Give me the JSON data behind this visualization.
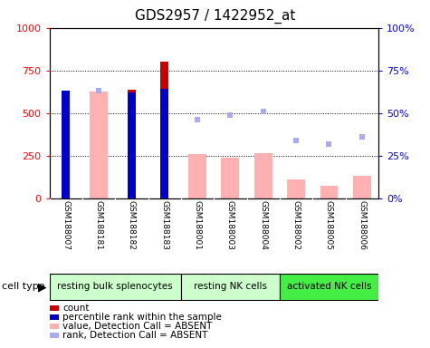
{
  "title": "GDS2957 / 1422952_at",
  "samples": [
    "GSM188007",
    "GSM188181",
    "GSM188182",
    "GSM188183",
    "GSM188001",
    "GSM188003",
    "GSM188004",
    "GSM188002",
    "GSM188005",
    "GSM188006"
  ],
  "count_values": [
    610,
    null,
    635,
    800,
    null,
    null,
    null,
    null,
    null,
    null
  ],
  "rank_values": [
    63,
    null,
    62,
    64,
    null,
    null,
    null,
    null,
    null,
    null
  ],
  "absent_value_bars": [
    null,
    625,
    null,
    null,
    260,
    240,
    265,
    110,
    75,
    130
  ],
  "absent_rank_dots": [
    null,
    63,
    null,
    null,
    46,
    49,
    51,
    34,
    32,
    36
  ],
  "ylim_left": [
    0,
    1000
  ],
  "ylim_right": [
    0,
    100
  ],
  "yticks_left": [
    0,
    250,
    500,
    750,
    1000
  ],
  "yticks_right": [
    0,
    25,
    50,
    75,
    100
  ],
  "ytick_labels_left": [
    "0",
    "250",
    "500",
    "750",
    "1000"
  ],
  "ytick_labels_right": [
    "0%",
    "25%",
    "50%",
    "75%",
    "100%"
  ],
  "groups": [
    {
      "label": "resting bulk splenocytes",
      "start": 0,
      "end": 3,
      "color": "#ccffcc"
    },
    {
      "label": "resting NK cells",
      "start": 4,
      "end": 6,
      "color": "#ccffcc"
    },
    {
      "label": "activated NK cells",
      "start": 7,
      "end": 9,
      "color": "#44ee44"
    }
  ],
  "cell_type_label": "cell type",
  "count_color": "#cc0000",
  "rank_color": "#0000cc",
  "absent_value_color": "#ffb0b0",
  "absent_rank_color": "#aaaaee",
  "legend": [
    {
      "label": "count",
      "color": "#cc0000",
      "type": "rect"
    },
    {
      "label": "percentile rank within the sample",
      "color": "#0000cc",
      "type": "rect"
    },
    {
      "label": "value, Detection Call = ABSENT",
      "color": "#ffb0b0",
      "type": "rect"
    },
    {
      "label": "rank, Detection Call = ABSENT",
      "color": "#aaaaee",
      "type": "rect"
    }
  ],
  "bg_color": "#ffffff",
  "tick_bg_color": "#cccccc",
  "title_fontsize": 11,
  "tick_fontsize": 8,
  "label_fontsize": 7.5
}
